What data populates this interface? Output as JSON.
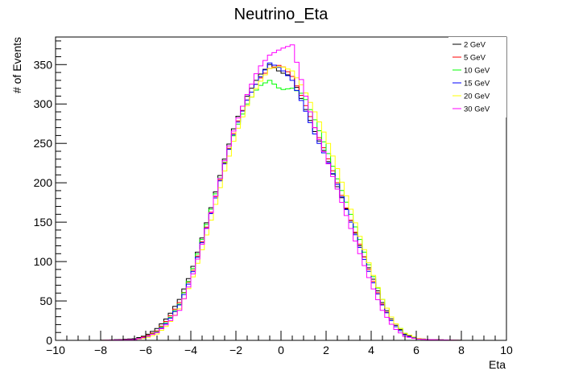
{
  "chart_data": {
    "type": "step",
    "title": "Neutrino_Eta",
    "xlabel": "Eta",
    "ylabel": "# of Events",
    "xlim": [
      -10,
      10
    ],
    "ylim": [
      0,
      385
    ],
    "xticks": [
      -10,
      -8,
      -6,
      -4,
      -2,
      0,
      2,
      4,
      6,
      8,
      10
    ],
    "yticks": [
      0,
      50,
      100,
      150,
      200,
      250,
      300,
      350
    ],
    "grid": false,
    "legend_position": "top-right",
    "bins": {
      "min": -10,
      "max": 10,
      "count": 100
    },
    "series": [
      {
        "name": "2 GeV",
        "color": "#000000",
        "centers": [
          -6.5,
          -6.0,
          -5.5,
          -5.0,
          -4.5,
          -4.0,
          -3.5,
          -3.0,
          -2.5,
          -2.0,
          -1.5,
          -1.0,
          -0.5,
          0.0,
          0.5,
          1.0,
          1.5,
          2.0,
          2.5,
          3.0,
          3.5,
          4.0,
          4.5,
          5.0,
          5.5,
          6.0,
          6.5
        ],
        "counts": [
          2,
          6,
          15,
          30,
          52,
          85,
          130,
          178,
          230,
          278,
          310,
          335,
          350,
          340,
          335,
          300,
          265,
          235,
          195,
          160,
          120,
          85,
          48,
          22,
          8,
          3,
          1
        ]
      },
      {
        "name": "5 GeV",
        "color": "#ff0000",
        "centers": [
          -6.5,
          -6.0,
          -5.5,
          -5.0,
          -4.5,
          -4.0,
          -3.5,
          -3.0,
          -2.5,
          -2.0,
          -1.5,
          -1.0,
          -0.5,
          0.0,
          0.5,
          1.0,
          1.5,
          2.0,
          2.5,
          3.0,
          3.5,
          4.0,
          4.5,
          5.0,
          5.5,
          6.0,
          6.5
        ],
        "counts": [
          1,
          5,
          12,
          27,
          48,
          80,
          125,
          172,
          225,
          272,
          305,
          330,
          345,
          350,
          335,
          305,
          270,
          238,
          200,
          160,
          122,
          82,
          46,
          20,
          7,
          2,
          1
        ]
      },
      {
        "name": "10 GeV",
        "color": "#00ff00",
        "centers": [
          -6.5,
          -6.0,
          -5.5,
          -5.0,
          -4.5,
          -4.0,
          -3.5,
          -3.0,
          -2.5,
          -2.0,
          -1.5,
          -1.0,
          -0.5,
          0.0,
          0.5,
          1.0,
          1.5,
          2.0,
          2.5,
          3.0,
          3.5,
          4.0,
          4.5,
          5.0,
          5.5,
          6.0,
          6.5
        ],
        "counts": [
          1,
          4,
          11,
          25,
          46,
          82,
          128,
          176,
          226,
          268,
          300,
          322,
          330,
          318,
          320,
          312,
          280,
          245,
          205,
          168,
          128,
          88,
          52,
          24,
          9,
          3,
          1
        ]
      },
      {
        "name": "15 GeV",
        "color": "#0000ff",
        "centers": [
          -6.5,
          -6.0,
          -5.5,
          -5.0,
          -4.5,
          -4.0,
          -3.5,
          -3.0,
          -2.5,
          -2.0,
          -1.5,
          -1.0,
          -0.5,
          0.0,
          0.5,
          1.0,
          1.5,
          2.0,
          2.5,
          3.0,
          3.5,
          4.0,
          4.5,
          5.0,
          5.5,
          6.0,
          6.5
        ],
        "counts": [
          1,
          4,
          10,
          24,
          45,
          78,
          124,
          170,
          224,
          270,
          305,
          330,
          352,
          345,
          330,
          298,
          262,
          232,
          198,
          158,
          118,
          80,
          45,
          20,
          7,
          2,
          1
        ]
      },
      {
        "name": "20 GeV",
        "color": "#ffff00",
        "centers": [
          -6.5,
          -6.0,
          -5.5,
          -5.0,
          -4.5,
          -4.0,
          -3.5,
          -3.0,
          -2.5,
          -2.0,
          -1.5,
          -1.0,
          -0.5,
          0.0,
          0.5,
          1.0,
          1.5,
          2.0,
          2.5,
          3.0,
          3.5,
          4.0,
          4.5,
          5.0,
          5.5,
          6.0,
          6.5
        ],
        "counts": [
          1,
          3,
          8,
          20,
          40,
          72,
          115,
          162,
          215,
          262,
          298,
          325,
          345,
          348,
          342,
          320,
          290,
          258,
          218,
          175,
          132,
          90,
          52,
          24,
          9,
          3,
          1
        ]
      },
      {
        "name": "30 GeV",
        "color": "#ff00ff",
        "centers": [
          -6.5,
          -6.0,
          -5.5,
          -5.0,
          -4.5,
          -4.0,
          -3.5,
          -3.0,
          -2.5,
          -2.0,
          -1.5,
          -1.0,
          -0.5,
          0.0,
          0.5,
          1.0,
          1.5,
          2.0,
          2.5,
          3.0,
          3.5,
          4.0,
          4.5,
          5.0,
          5.5,
          6.0,
          6.5
        ],
        "counts": [
          1,
          4,
          10,
          22,
          38,
          75,
          122,
          172,
          228,
          275,
          312,
          345,
          362,
          370,
          375,
          320,
          270,
          232,
          192,
          150,
          110,
          72,
          38,
          16,
          5,
          2,
          1
        ]
      }
    ]
  }
}
